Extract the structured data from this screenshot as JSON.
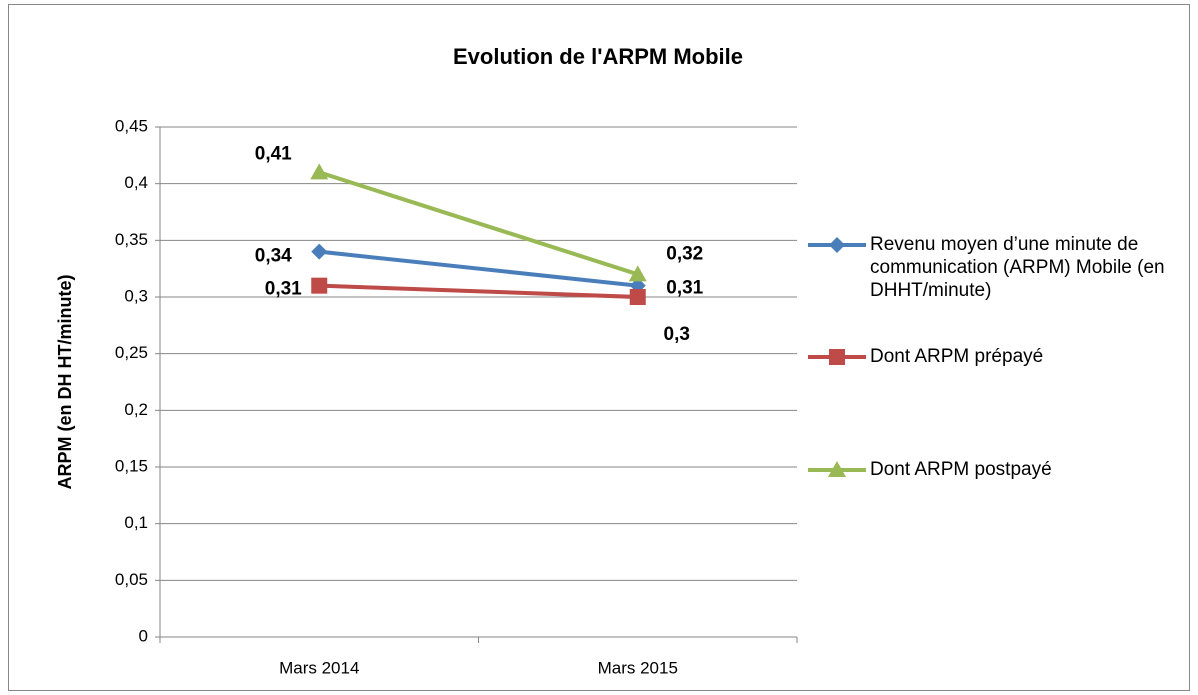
{
  "chart_data": {
    "type": "line",
    "title": "Evolution de l'ARPM Mobile",
    "y_label": "ARPM (en DH HT/minute)",
    "categories": [
      "Mars 2014",
      "Mars 2015"
    ],
    "series": [
      {
        "name": "Revenu moyen d’une minute de communication (ARPM) Mobile (en DHHT/minute)",
        "color": "#4a7ebb",
        "marker": "diamond",
        "values": [
          0.34,
          0.31
        ],
        "value_labels": [
          "0,34",
          "0,31"
        ]
      },
      {
        "name": "Dont ARPM prépayé",
        "color": "#be4b48",
        "marker": "square",
        "values": [
          0.31,
          0.3
        ],
        "value_labels": [
          "0,31",
          "0,3"
        ]
      },
      {
        "name": "Dont ARPM postpayé",
        "color": "#98b954",
        "marker": "triangle",
        "values": [
          0.41,
          0.32
        ],
        "value_labels": [
          "0,41",
          "0,32"
        ]
      }
    ],
    "ylim": [
      0,
      0.45
    ],
    "yticks": [
      0,
      {
        "value": 0.05,
        "label": "0,05"
      },
      {
        "value": 0.1,
        "label": "0,1"
      },
      {
        "value": 0.15,
        "label": "0,15"
      },
      {
        "value": 0.2,
        "label": "0,2"
      },
      {
        "value": 0.25,
        "label": "0,25"
      },
      {
        "value": 0.3,
        "label": "0,3"
      },
      {
        "value": 0.35,
        "label": "0,35"
      },
      {
        "value": 0.4,
        "label": "0,4"
      },
      {
        "value": 0.45,
        "label": "0,45"
      }
    ],
    "grid": true,
    "legend": "right"
  }
}
